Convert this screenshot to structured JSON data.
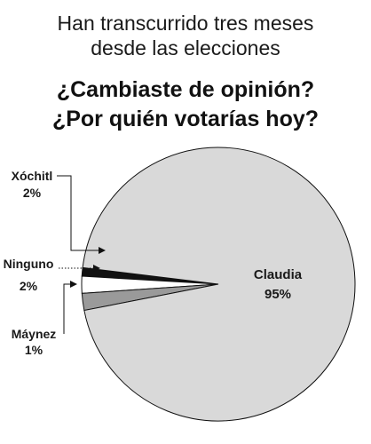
{
  "header": {
    "subtitle_line1": "Han transcurrido tres meses",
    "subtitle_line2": "desde las elecciones",
    "title_line1": "¿Cambiaste de opinión?",
    "title_line2": "¿Por quién votarías hoy?"
  },
  "chart_data": {
    "type": "pie",
    "title": "¿Cambiaste de opinión? ¿Por quién votarías hoy?",
    "subtitle": "Han transcurrido tres meses desde las elecciones",
    "slices": [
      {
        "name": "Claudia",
        "value": 95,
        "label": "95%",
        "color": "#d9d9d9"
      },
      {
        "name": "Xóchitl",
        "value": 2,
        "label": "2%",
        "color": "#9a9a9a"
      },
      {
        "name": "Ninguno",
        "value": 2,
        "label": "2%",
        "color": "#ffffff"
      },
      {
        "name": "Máynez",
        "value": 1,
        "label": "1%",
        "color": "#111111"
      }
    ],
    "legend": "callout labels"
  }
}
